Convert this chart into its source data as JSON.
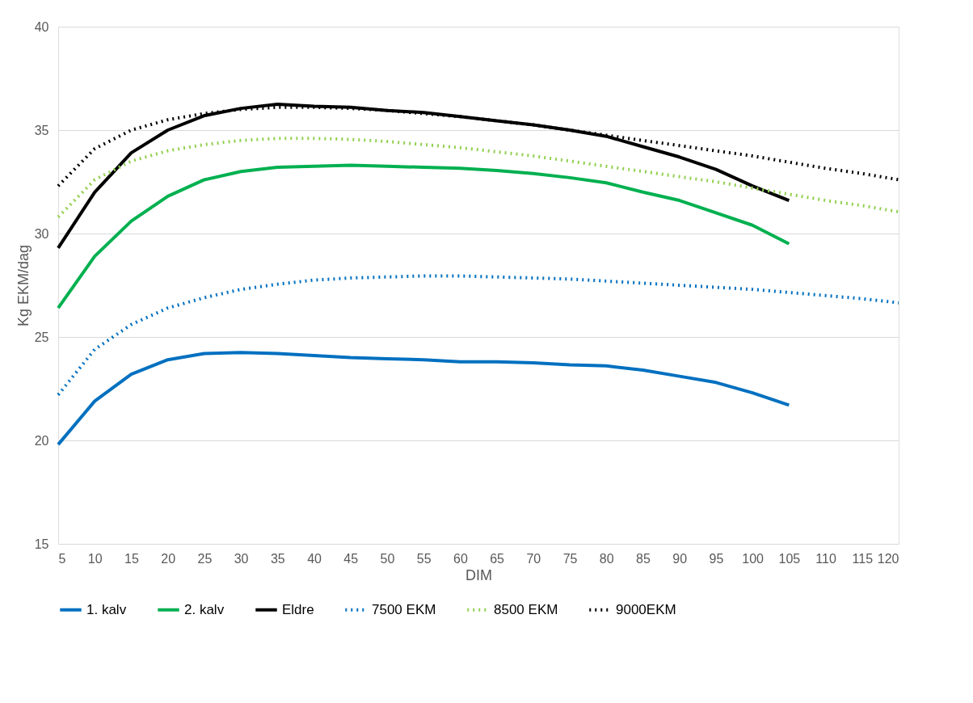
{
  "chart_data": {
    "type": "line",
    "xlabel": "DIM",
    "ylabel": "Kg EKM/dag",
    "x": [
      5,
      10,
      15,
      20,
      25,
      30,
      35,
      40,
      45,
      50,
      55,
      60,
      65,
      70,
      75,
      80,
      85,
      90,
      95,
      100,
      105,
      110,
      115,
      120
    ],
    "xlim": [
      5,
      120
    ],
    "xticks": [
      5,
      10,
      15,
      20,
      25,
      30,
      35,
      40,
      45,
      50,
      55,
      60,
      65,
      70,
      75,
      80,
      85,
      90,
      95,
      100,
      105,
      110,
      115,
      120
    ],
    "ylim": [
      15,
      40
    ],
    "yticks": [
      15,
      20,
      25,
      30,
      35,
      40
    ],
    "grid": "y",
    "legend": "bottom",
    "marker": "none",
    "series": [
      {
        "name": "1. kalv",
        "color": "#0070c0",
        "line_style": "solid",
        "values": [
          19.8,
          21.9,
          23.2,
          23.9,
          24.2,
          24.25,
          24.2,
          24.1,
          24.0,
          23.95,
          23.9,
          23.8,
          23.8,
          23.75,
          23.65,
          23.6,
          23.4,
          23.1,
          22.8,
          22.3,
          21.7,
          null,
          null,
          null
        ]
      },
      {
        "name": "2. kalv",
        "color": "#00b050",
        "line_style": "solid",
        "values": [
          26.4,
          28.9,
          30.6,
          31.8,
          32.6,
          33.0,
          33.2,
          33.25,
          33.3,
          33.25,
          33.2,
          33.15,
          33.05,
          32.9,
          32.7,
          32.45,
          32.0,
          31.6,
          31.0,
          30.4,
          29.5,
          null,
          null,
          null
        ]
      },
      {
        "name": "Eldre",
        "color": "#000000",
        "line_style": "solid",
        "values": [
          29.3,
          32.0,
          33.9,
          35.0,
          35.7,
          36.05,
          36.25,
          36.15,
          36.1,
          35.95,
          35.85,
          35.65,
          35.45,
          35.25,
          35.0,
          34.7,
          34.2,
          33.7,
          33.1,
          32.3,
          31.6,
          null,
          null,
          null
        ]
      },
      {
        "name": "7500 EKM",
        "color": "#0070c0",
        "line_style": "dotted",
        "values": [
          22.2,
          24.4,
          25.6,
          26.4,
          26.9,
          27.3,
          27.55,
          27.75,
          27.85,
          27.9,
          27.95,
          27.95,
          27.9,
          27.85,
          27.8,
          27.7,
          27.6,
          27.5,
          27.4,
          27.3,
          27.15,
          27.0,
          26.85,
          26.65
        ]
      },
      {
        "name": "8500 EKM",
        "color": "#92d050",
        "line_style": "dotted",
        "values": [
          30.8,
          32.6,
          33.5,
          34.0,
          34.3,
          34.5,
          34.6,
          34.6,
          34.55,
          34.45,
          34.3,
          34.15,
          33.95,
          33.75,
          33.5,
          33.25,
          33.0,
          32.75,
          32.5,
          32.2,
          31.9,
          31.6,
          31.35,
          31.05
        ]
      },
      {
        "name": "9000EKM",
        "color": "#000000",
        "line_style": "dotted",
        "values": [
          32.3,
          34.1,
          35.0,
          35.5,
          35.8,
          36.0,
          36.1,
          36.1,
          36.05,
          35.95,
          35.8,
          35.65,
          35.45,
          35.25,
          35.0,
          34.75,
          34.5,
          34.25,
          34.0,
          33.75,
          33.45,
          33.15,
          32.9,
          32.6
        ]
      }
    ]
  }
}
